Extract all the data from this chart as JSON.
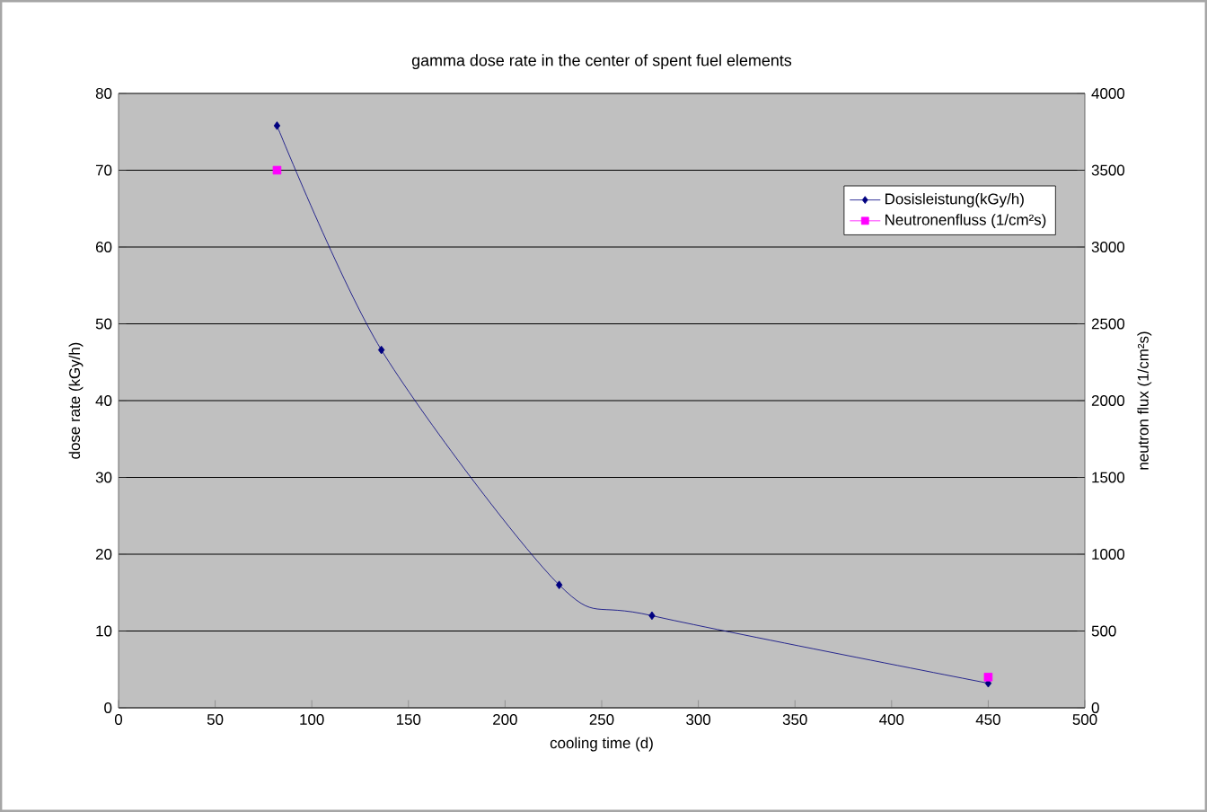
{
  "chart_data": {
    "type": "line",
    "title": "gamma dose rate in the center of spent fuel elements",
    "xlabel": "cooling time (d)",
    "ylabel": "dose rate (kGy/h)",
    "y2label": "neutron flux (1/cm²s)",
    "series": [
      {
        "name": "Dosisleistung(kGy/h)",
        "color": "#000080",
        "marker": "diamond",
        "x": [
          82,
          136,
          228,
          276,
          450
        ],
        "values": [
          75.8,
          46.6,
          16.0,
          12.0,
          3.2
        ]
      },
      {
        "name": "Neutronenfluss (1/cm²s)",
        "type": "scatter",
        "axis": "y2",
        "color": "#ff00ff",
        "marker": "square",
        "x": [
          82,
          450
        ],
        "values": [
          3500,
          200
        ]
      }
    ],
    "xlim": [
      0,
      500
    ],
    "xticks": [
      0,
      50,
      100,
      150,
      200,
      250,
      300,
      350,
      400,
      450,
      500
    ],
    "ylim": [
      0,
      80
    ],
    "yticks": [
      0,
      10,
      20,
      30,
      40,
      50,
      60,
      70,
      80
    ],
    "y2lim": [
      0,
      4000
    ],
    "y2ticks": [
      0,
      500,
      1000,
      1500,
      2000,
      2500,
      3000,
      3500,
      4000
    ],
    "grid": "y",
    "legend": "top right"
  }
}
